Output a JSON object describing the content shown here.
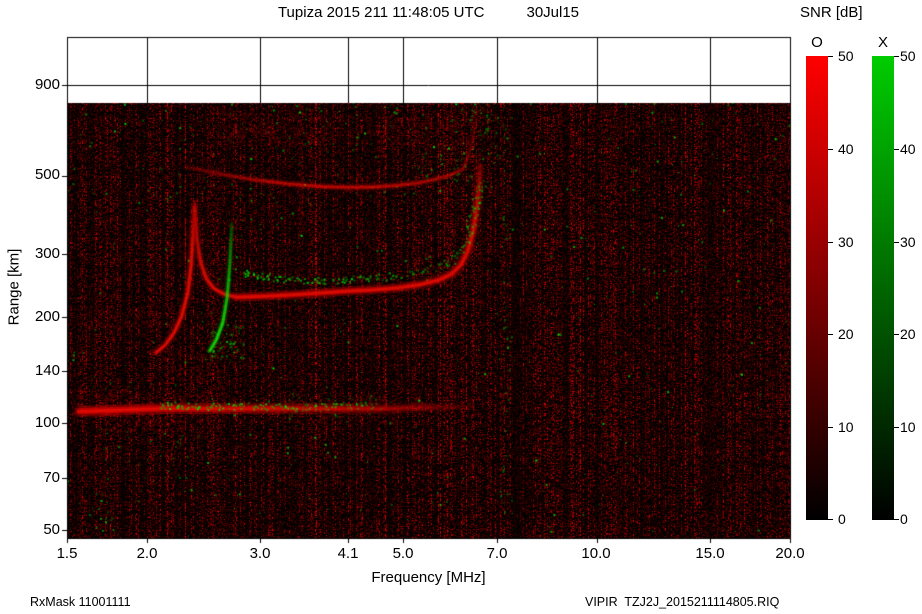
{
  "header": {
    "title": "Tupiza 2015 211 11:48:05 UTC",
    "date": "30Jul15"
  },
  "footer": {
    "left": "RxMask 11001111",
    "right": "VIPIR  TZJ2J_2015211114805.RIQ"
  },
  "colorbar": {
    "title": "SNR [dB]",
    "o_label": "O",
    "x_label": "X",
    "o_color_top": "#ff0000",
    "x_color_top": "#00cc00",
    "min_db": 0,
    "max_db": 50,
    "ticks": [
      "50",
      "40",
      "30",
      "20",
      "10",
      "0"
    ]
  },
  "chart_data": {
    "type": "heatmap",
    "title": "Tupiza 2015 211 11:48:05 UTC 30Jul15",
    "xlabel": "Frequency [MHz]",
    "ylabel": "Range [km]",
    "x_scale": "log",
    "y_scale": "log",
    "xlim": [
      1.5,
      20.0
    ],
    "ylim_km": [
      47,
      1230
    ],
    "max_data_range_km": 800,
    "x_ticks": [
      "1.5",
      "2.0",
      "3.0",
      "4.1",
      "5.0",
      "7.0",
      "10.0",
      "15.0",
      "20.0"
    ],
    "x_tick_values": [
      1.5,
      2.0,
      3.0,
      4.1,
      5.0,
      7.0,
      10.0,
      15.0,
      20.0
    ],
    "y_ticks": [
      "900",
      "500",
      "300",
      "200",
      "140",
      "100",
      "70",
      "50"
    ],
    "y_tick_values": [
      900,
      500,
      300,
      200,
      140,
      100,
      70,
      50
    ],
    "snr_range_db": [
      0,
      50
    ],
    "o_mode_color": "#ff0000",
    "x_mode_color": "#00cc00",
    "background": {
      "color": "#000000",
      "noise": "red-speckle with sparse green dots",
      "grid": true
    },
    "traces": [
      {
        "name": "es-layer-o",
        "mode": "O",
        "style": "line",
        "width": 6,
        "points": [
          [
            1.56,
            108
          ],
          [
            1.8,
            109
          ],
          [
            2.1,
            110
          ],
          [
            2.5,
            110
          ],
          [
            3.0,
            110
          ],
          [
            3.6,
            110
          ],
          [
            4.2,
            110
          ],
          [
            4.8,
            110
          ],
          [
            5.4,
            111
          ],
          [
            6.0,
            111
          ],
          [
            6.4,
            111
          ]
        ],
        "alphas": [
          0.95,
          1.0,
          0.95,
          0.85,
          0.75,
          0.6,
          0.5,
          0.38,
          0.25,
          0.14,
          0.07
        ]
      },
      {
        "name": "es-layer-x",
        "mode": "X",
        "style": "speckle",
        "width": 4,
        "points": [
          [
            2.1,
            113
          ],
          [
            2.5,
            112
          ],
          [
            3.0,
            112
          ],
          [
            3.5,
            111
          ],
          [
            4.0,
            112
          ],
          [
            4.3,
            113
          ],
          [
            4.6,
            112
          ]
        ],
        "alphas": [
          0.85,
          0.8,
          0.7,
          0.6,
          0.55,
          0.5,
          0.35
        ]
      },
      {
        "name": "f1-cusp-o-up",
        "mode": "O",
        "style": "line",
        "width": 4,
        "points": [
          [
            2.06,
            158
          ],
          [
            2.13,
            166
          ],
          [
            2.2,
            180
          ],
          [
            2.26,
            200
          ],
          [
            2.31,
            232
          ],
          [
            2.34,
            280
          ],
          [
            2.355,
            340
          ],
          [
            2.365,
            400
          ],
          [
            2.37,
            425
          ]
        ],
        "alphas": [
          0.75,
          0.8,
          0.85,
          0.9,
          0.9,
          0.85,
          0.7,
          0.45,
          0.25
        ]
      },
      {
        "name": "f1-cusp-o-down",
        "mode": "O",
        "style": "line",
        "width": 4,
        "points": [
          [
            2.375,
            410
          ],
          [
            2.39,
            330
          ],
          [
            2.42,
            285
          ],
          [
            2.47,
            256
          ],
          [
            2.54,
            240
          ],
          [
            2.64,
            231
          ],
          [
            2.75,
            227
          ]
        ],
        "alphas": [
          0.3,
          0.55,
          0.7,
          0.8,
          0.88,
          0.9,
          0.9
        ]
      },
      {
        "name": "f-main-o",
        "mode": "O",
        "style": "line",
        "width": 5,
        "points": [
          [
            2.75,
            227
          ],
          [
            3.0,
            228
          ],
          [
            3.3,
            230
          ],
          [
            3.7,
            233
          ],
          [
            4.1,
            236
          ],
          [
            4.5,
            238
          ],
          [
            4.9,
            241
          ],
          [
            5.3,
            246
          ],
          [
            5.7,
            254
          ],
          [
            5.95,
            264
          ],
          [
            6.15,
            280
          ],
          [
            6.3,
            305
          ],
          [
            6.42,
            345
          ],
          [
            6.5,
            395
          ],
          [
            6.55,
            450
          ],
          [
            6.58,
            505
          ],
          [
            6.6,
            540
          ]
        ],
        "alphas": [
          0.95,
          0.95,
          0.95,
          0.95,
          0.95,
          0.92,
          0.9,
          0.9,
          0.9,
          0.9,
          0.88,
          0.82,
          0.72,
          0.6,
          0.48,
          0.32,
          0.18
        ]
      },
      {
        "name": "f-cusp-x",
        "mode": "X",
        "style": "line",
        "width": 3.5,
        "points": [
          [
            2.5,
            160
          ],
          [
            2.56,
            172
          ],
          [
            2.62,
            192
          ],
          [
            2.66,
            225
          ],
          [
            2.685,
            275
          ],
          [
            2.7,
            330
          ],
          [
            2.705,
            370
          ]
        ],
        "alphas": [
          0.85,
          0.9,
          0.85,
          0.7,
          0.5,
          0.3,
          0.15
        ]
      },
      {
        "name": "f-main-x",
        "mode": "X",
        "style": "speckle",
        "width": 4,
        "points": [
          [
            2.78,
            268
          ],
          [
            3.0,
            260
          ],
          [
            3.3,
            255
          ],
          [
            3.7,
            254
          ],
          [
            4.1,
            256
          ],
          [
            4.5,
            259
          ],
          [
            4.9,
            263
          ],
          [
            5.3,
            269
          ],
          [
            5.7,
            279
          ],
          [
            6.0,
            293
          ],
          [
            6.2,
            315
          ],
          [
            6.35,
            360
          ],
          [
            6.5,
            415
          ],
          [
            6.6,
            465
          ],
          [
            6.65,
            500
          ]
        ],
        "alphas": [
          0.8,
          0.85,
          0.85,
          0.8,
          0.72,
          0.6,
          0.5,
          0.45,
          0.45,
          0.5,
          0.58,
          0.65,
          0.6,
          0.42,
          0.22
        ]
      },
      {
        "name": "second-hop-o",
        "mode": "O",
        "style": "line",
        "width": 4,
        "points": [
          [
            2.3,
            528
          ],
          [
            2.6,
            505
          ],
          [
            2.9,
            488
          ],
          [
            3.3,
            474
          ],
          [
            3.7,
            466
          ],
          [
            4.1,
            463
          ],
          [
            4.5,
            464
          ],
          [
            4.9,
            469
          ],
          [
            5.3,
            477
          ],
          [
            5.7,
            491
          ],
          [
            6.0,
            507
          ],
          [
            6.2,
            522
          ],
          [
            6.3,
            560
          ],
          [
            6.4,
            620
          ],
          [
            6.47,
            700
          ],
          [
            6.5,
            770
          ]
        ],
        "alphas": [
          0.15,
          0.28,
          0.42,
          0.52,
          0.55,
          0.55,
          0.55,
          0.52,
          0.48,
          0.42,
          0.35,
          0.3,
          0.24,
          0.18,
          0.14,
          0.1
        ]
      },
      {
        "name": "third-hop-o",
        "mode": "O",
        "style": "diffuse",
        "width": 6,
        "points": [
          [
            2.9,
            700
          ],
          [
            3.2,
            672
          ],
          [
            3.6,
            656
          ],
          [
            4.0,
            650
          ],
          [
            4.4,
            653
          ],
          [
            4.8,
            661
          ],
          [
            5.2,
            674
          ],
          [
            5.6,
            692
          ],
          [
            5.9,
            712
          ]
        ],
        "alphas": [
          0.14,
          0.18,
          0.2,
          0.2,
          0.2,
          0.2,
          0.18,
          0.16,
          0.12
        ]
      },
      {
        "name": "left-faint-band-o",
        "mode": "O",
        "style": "diffuse",
        "width": 6,
        "points": [
          [
            1.6,
            202
          ],
          [
            1.8,
            200
          ],
          [
            2.0,
            199
          ],
          [
            2.18,
            200
          ]
        ],
        "alphas": [
          0.15,
          0.2,
          0.2,
          0.15
        ]
      }
    ],
    "green_patches": [
      {
        "name": "x-cusp-blob",
        "f": [
          2.5,
          2.82
        ],
        "km": [
          150,
          192
        ],
        "n": 90,
        "alpha": 0.8
      },
      {
        "name": "interference-column",
        "f": [
          7.12,
          7.4
        ],
        "km": [
          55,
          760
        ],
        "n": 80,
        "alpha": 0.6
      },
      {
        "name": "upper-scatter",
        "f": [
          2.0,
          7.0
        ],
        "km": [
          430,
          800
        ],
        "n": 130,
        "alpha": 0.45
      },
      {
        "name": "top-right-scatter",
        "f": [
          6.3,
          7.3
        ],
        "km": [
          560,
          790
        ],
        "n": 55,
        "alpha": 0.5
      },
      {
        "name": "second-hop-x",
        "f": [
          5.2,
          6.4
        ],
        "km": [
          480,
          580
        ],
        "n": 55,
        "alpha": 0.5
      },
      {
        "name": "bottom-left-cluster",
        "f": [
          1.56,
          1.78
        ],
        "km": [
          50,
          64
        ],
        "n": 28,
        "alpha": 0.7
      },
      {
        "name": "low-left-scatter",
        "f": [
          1.7,
          2.4
        ],
        "km": [
          70,
          96
        ],
        "n": 35,
        "alpha": 0.5
      },
      {
        "name": "es-green-mid",
        "f": [
          2.9,
          4.6
        ],
        "km": [
          103,
          122
        ],
        "n": 70,
        "alpha": 0.45
      }
    ],
    "red_patches": [
      {
        "name": "es-glow",
        "f": [
          1.55,
          2.6
        ],
        "km": [
          95,
          126
        ],
        "n": 550,
        "alpha": 0.5
      },
      {
        "name": "es-glow-right",
        "f": [
          2.6,
          4.9
        ],
        "km": [
          99,
          121
        ],
        "n": 350,
        "alpha": 0.3
      },
      {
        "name": "top-diffuse-left",
        "f": [
          2.6,
          3.9
        ],
        "km": [
          615,
          780
        ],
        "n": 420,
        "alpha": 0.4
      },
      {
        "name": "top-diffuse-right",
        "f": [
          4.6,
          6.4
        ],
        "km": [
          600,
          770
        ],
        "n": 380,
        "alpha": 0.38
      },
      {
        "name": "mid-left-band",
        "f": [
          1.6,
          2.3
        ],
        "km": [
          185,
          215
        ],
        "n": 160,
        "alpha": 0.3
      },
      {
        "name": "cusp-foot-glow",
        "f": [
          2.1,
          2.5
        ],
        "km": [
          130,
          165
        ],
        "n": 120,
        "alpha": 0.35
      }
    ]
  }
}
